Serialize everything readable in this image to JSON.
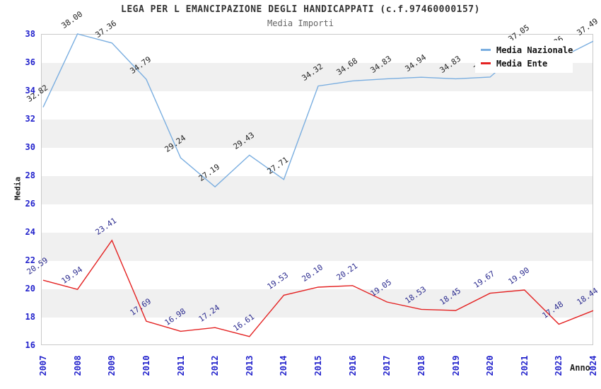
{
  "chart_data": {
    "type": "line",
    "title": "LEGA PER L EMANCIPAZIONE DEGLI HANDICAPPATI (c.f.97460000157)",
    "subtitle": "Media Importi",
    "xlabel": "Anno",
    "ylabel": "Media",
    "ylim": [
      16,
      38
    ],
    "ytick_step": 2,
    "grid": "alternating-bands",
    "band_colors": [
      "#ffffff",
      "#f0f0f0"
    ],
    "legend_position": "top-right",
    "tick_color": "#2222cc",
    "categories": [
      "2007",
      "2008",
      "2009",
      "2010",
      "2011",
      "2012",
      "2013",
      "2014",
      "2015",
      "2016",
      "2017",
      "2018",
      "2019",
      "2020",
      "2021",
      "2023",
      "2024"
    ],
    "series": [
      {
        "name": "Media Nazionale",
        "color": "#7aaee0",
        "label_color": "#222222",
        "values": [
          32.82,
          38.0,
          37.36,
          34.79,
          29.24,
          27.19,
          29.43,
          27.71,
          34.32,
          34.68,
          34.83,
          34.94,
          34.83,
          34.95,
          37.05,
          36.26,
          37.49
        ]
      },
      {
        "name": "Media Ente",
        "color": "#e42222",
        "label_color": "#2b2b8f",
        "values": [
          20.59,
          19.94,
          23.41,
          17.69,
          16.98,
          17.24,
          16.61,
          19.53,
          20.1,
          20.21,
          19.05,
          18.53,
          18.45,
          19.67,
          19.9,
          17.48,
          18.44
        ]
      }
    ]
  }
}
